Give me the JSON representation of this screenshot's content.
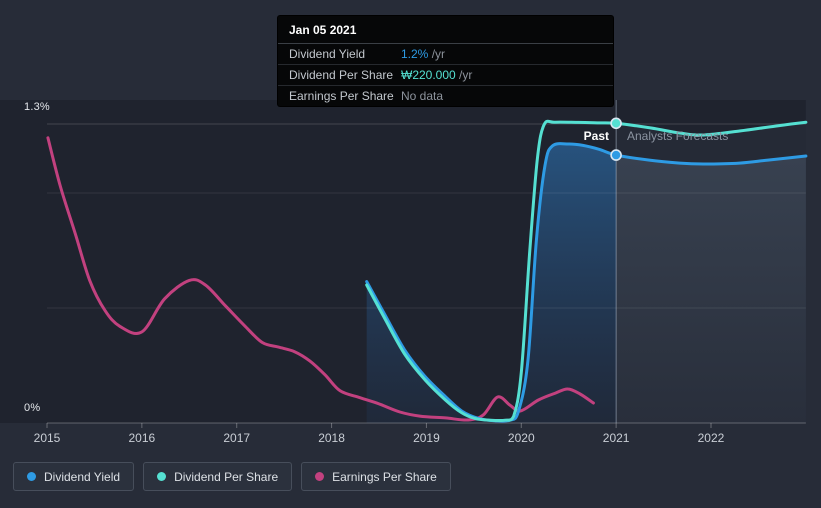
{
  "y_axis": {
    "max_label": "1.3%",
    "min_label": "0%"
  },
  "annotations": {
    "past_label": "Past",
    "forecast_label": "Analysts Forecasts"
  },
  "tooltip": {
    "title": "Jan 05 2021",
    "rows": [
      {
        "label": "Dividend Yield",
        "value": "1.2%",
        "suffix": " /yr",
        "series": "dy"
      },
      {
        "label": "Dividend Per Share",
        "value": "₩220.000",
        "suffix": " /yr",
        "series": "dps"
      },
      {
        "label": "Earnings Per Share",
        "value": "No data",
        "suffix": "",
        "series": null
      }
    ]
  },
  "legend": [
    {
      "label": "Dividend Yield",
      "series": "dy"
    },
    {
      "label": "Dividend Per Share",
      "series": "dps"
    },
    {
      "label": "Earnings Per Share",
      "series": "eps"
    }
  ],
  "chart_data": {
    "type": "line",
    "x_range": [
      2015,
      2023
    ],
    "y_range_pct": [
      0,
      1.3
    ],
    "gridlines_pct": [
      1.3,
      1.0,
      0.5
    ],
    "x_ticks": [
      2015,
      2016,
      2017,
      2018,
      2019,
      2020,
      2021,
      2022
    ],
    "x_tick_labels": [
      "2015",
      "2016",
      "2017",
      "2018",
      "2019",
      "2020",
      "2021",
      "2022"
    ],
    "divider_year": 2021,
    "legend_position": "bottom-left",
    "series_colors": {
      "dy": "#2e9be4",
      "dps": "#55e0d2",
      "eps": "#c2417f"
    },
    "fills": {
      "past_top": "rgba(47,130,205,0.50)",
      "past_bottom": "rgba(40,95,160,0.10)",
      "forecast_top": "rgba(150,180,210,0.17)",
      "forecast_bottom": "rgba(150,180,210,0.03)",
      "forecast_teal": "rgba(150,180,210,0.05)"
    },
    "markers": [
      {
        "series": "dps",
        "x": 2021,
        "y": 1.303,
        "value": "₩220.000 /yr"
      },
      {
        "series": "dy",
        "x": 2021,
        "y": 1.165,
        "value": "1.2% /yr"
      }
    ],
    "series": [
      {
        "id": "dy",
        "name": "Dividend Yield",
        "unit": "%/yr",
        "past": [
          [
            2018.37,
            0.615
          ],
          [
            2018.56,
            0.472
          ],
          [
            2018.77,
            0.318
          ],
          [
            2018.98,
            0.205
          ],
          [
            2019.2,
            0.115
          ],
          [
            2019.38,
            0.05
          ],
          [
            2019.55,
            0.02
          ],
          [
            2019.72,
            0.01
          ],
          [
            2019.88,
            0.012
          ],
          [
            2019.97,
            0.05
          ],
          [
            2020.07,
            0.27
          ],
          [
            2020.16,
            0.8
          ],
          [
            2020.25,
            1.12
          ],
          [
            2020.33,
            1.205
          ],
          [
            2020.5,
            1.213
          ],
          [
            2020.65,
            1.207
          ],
          [
            2020.82,
            1.19
          ],
          [
            2021.0,
            1.165
          ]
        ],
        "forecast": [
          [
            2021.0,
            1.165
          ],
          [
            2021.35,
            1.143
          ],
          [
            2021.67,
            1.13
          ],
          [
            2021.92,
            1.126
          ],
          [
            2022.3,
            1.13
          ],
          [
            2022.6,
            1.143
          ],
          [
            2023.0,
            1.161
          ]
        ]
      },
      {
        "id": "dps",
        "name": "Dividend Per Share",
        "unit": "KRW/yr (rescaled to % axis)",
        "past": [
          [
            2018.37,
            0.6
          ],
          [
            2018.56,
            0.455
          ],
          [
            2018.77,
            0.3
          ],
          [
            2018.98,
            0.19
          ],
          [
            2019.2,
            0.1
          ],
          [
            2019.37,
            0.045
          ],
          [
            2019.51,
            0.02
          ],
          [
            2019.67,
            0.012
          ],
          [
            2019.83,
            0.012
          ],
          [
            2019.92,
            0.03
          ],
          [
            2020.0,
            0.22
          ],
          [
            2020.09,
            0.75
          ],
          [
            2020.17,
            1.15
          ],
          [
            2020.24,
            1.297
          ],
          [
            2020.35,
            1.308
          ],
          [
            2020.6,
            1.307
          ],
          [
            2020.8,
            1.305
          ],
          [
            2021.0,
            1.303
          ]
        ],
        "forecast": [
          [
            2021.0,
            1.303
          ],
          [
            2021.36,
            1.283
          ],
          [
            2021.67,
            1.261
          ],
          [
            2021.92,
            1.252
          ],
          [
            2022.31,
            1.27
          ],
          [
            2022.68,
            1.291
          ],
          [
            2023.0,
            1.308
          ]
        ]
      },
      {
        "id": "eps",
        "name": "Earnings Per Share",
        "unit": "KRW (rescaled to % axis)",
        "past": [
          [
            2015.01,
            1.24
          ],
          [
            2015.14,
            1.03
          ],
          [
            2015.3,
            0.82
          ],
          [
            2015.45,
            0.62
          ],
          [
            2015.61,
            0.49
          ],
          [
            2015.77,
            0.42
          ],
          [
            2016.0,
            0.396
          ],
          [
            2016.24,
            0.54
          ],
          [
            2016.5,
            0.62
          ],
          [
            2016.67,
            0.6
          ],
          [
            2016.88,
            0.51
          ],
          [
            2017.09,
            0.42
          ],
          [
            2017.27,
            0.35
          ],
          [
            2017.44,
            0.33
          ],
          [
            2017.61,
            0.31
          ],
          [
            2017.77,
            0.27
          ],
          [
            2017.93,
            0.21
          ],
          [
            2018.09,
            0.14
          ],
          [
            2018.3,
            0.11
          ],
          [
            2018.5,
            0.083
          ],
          [
            2018.72,
            0.048
          ],
          [
            2018.93,
            0.03
          ],
          [
            2019.2,
            0.022
          ],
          [
            2019.44,
            0.013
          ],
          [
            2019.6,
            0.035
          ],
          [
            2019.75,
            0.113
          ],
          [
            2019.88,
            0.078
          ],
          [
            2019.99,
            0.052
          ],
          [
            2020.18,
            0.1
          ],
          [
            2020.36,
            0.13
          ],
          [
            2020.49,
            0.148
          ],
          [
            2020.62,
            0.126
          ],
          [
            2020.76,
            0.087
          ]
        ],
        "forecast": []
      }
    ]
  }
}
